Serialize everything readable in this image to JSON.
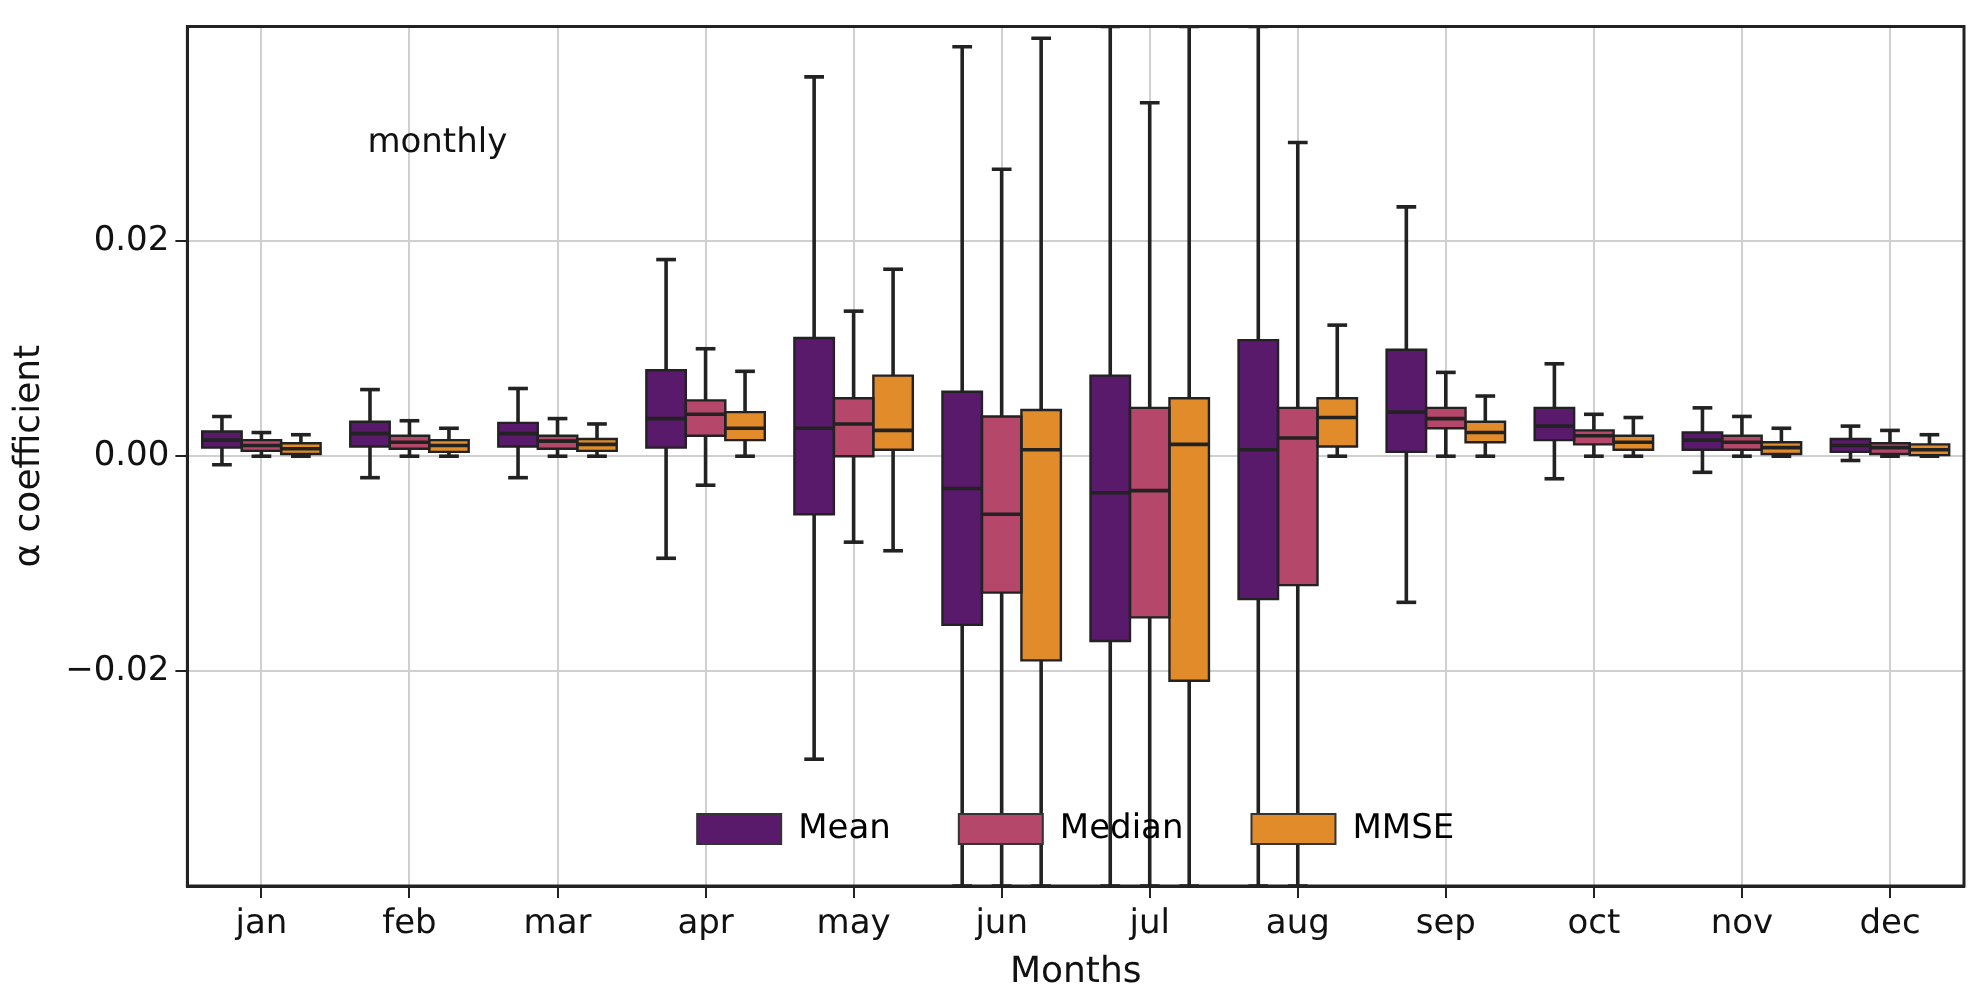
{
  "chart_data": {
    "type": "box",
    "xlabel": "Months",
    "ylabel": "α coefficient",
    "annotations": [
      "monthly"
    ],
    "categories": [
      "jan",
      "feb",
      "mar",
      "apr",
      "may",
      "jun",
      "jul",
      "aug",
      "sep",
      "oct",
      "nov",
      "dec"
    ],
    "ylim": [
      -0.04,
      0.04
    ],
    "yticks": [
      {
        "value": -0.02,
        "label": "−0.02"
      },
      {
        "value": 0,
        "label": "0.00"
      },
      {
        "value": 0.02,
        "label": "0.02"
      }
    ],
    "grid": true,
    "legend": "bottom",
    "series": [
      {
        "name": "Mean",
        "color": "#5a1a6b",
        "boxes": [
          {
            "low": -0.0008,
            "q1": 0.0008,
            "median": 0.0015,
            "q3": 0.0023,
            "high": 0.0037
          },
          {
            "low": -0.002,
            "q1": 0.0009,
            "median": 0.0021,
            "q3": 0.0032,
            "high": 0.0062
          },
          {
            "low": -0.002,
            "q1": 0.0009,
            "median": 0.0021,
            "q3": 0.0031,
            "high": 0.0063
          },
          {
            "low": -0.0095,
            "q1": 0.0008,
            "median": 0.0035,
            "q3": 0.008,
            "high": 0.0183
          },
          {
            "low": -0.0282,
            "q1": -0.0054,
            "median": 0.0026,
            "q3": 0.011,
            "high": 0.0353
          },
          {
            "low": -0.04,
            "q1": -0.0157,
            "median": -0.003,
            "q3": 0.006,
            "high": 0.0381
          },
          {
            "low": -0.04,
            "q1": -0.0172,
            "median": -0.0034,
            "q3": 0.0075,
            "high": 0.04
          },
          {
            "low": -0.04,
            "q1": -0.0133,
            "median": 0.0006,
            "q3": 0.0108,
            "high": 0.04
          },
          {
            "low": -0.0136,
            "q1": 0.0004,
            "median": 0.0041,
            "q3": 0.0099,
            "high": 0.0232
          },
          {
            "low": -0.0021,
            "q1": 0.0015,
            "median": 0.0028,
            "q3": 0.0045,
            "high": 0.0086
          },
          {
            "low": -0.0015,
            "q1": 0.0006,
            "median": 0.0015,
            "q3": 0.0022,
            "high": 0.0045
          },
          {
            "low": -0.0004,
            "q1": 0.0004,
            "median": 0.001,
            "q3": 0.0016,
            "high": 0.0028
          }
        ]
      },
      {
        "name": "Median",
        "color": "#b5476a",
        "boxes": [
          {
            "low": 0,
            "q1": 0.0005,
            "median": 0.001,
            "q3": 0.0015,
            "high": 0.0022
          },
          {
            "low": 0,
            "q1": 0.0007,
            "median": 0.0013,
            "q3": 0.0019,
            "high": 0.0033
          },
          {
            "low": 0,
            "q1": 0.0007,
            "median": 0.0014,
            "q3": 0.0019,
            "high": 0.0035
          },
          {
            "low": -0.0027,
            "q1": 0.0019,
            "median": 0.0039,
            "q3": 0.0052,
            "high": 0.01
          },
          {
            "low": -0.008,
            "q1": 0,
            "median": 0.003,
            "q3": 0.0054,
            "high": 0.0135
          },
          {
            "low": -0.04,
            "q1": -0.0127,
            "median": -0.0054,
            "q3": 0.0037,
            "high": 0.0267
          },
          {
            "low": -0.04,
            "q1": -0.015,
            "median": -0.0032,
            "q3": 0.0045,
            "high": 0.0329
          },
          {
            "low": -0.04,
            "q1": -0.012,
            "median": 0.0017,
            "q3": 0.0045,
            "high": 0.0292
          },
          {
            "low": 0,
            "q1": 0.0026,
            "median": 0.0035,
            "q3": 0.0045,
            "high": 0.0078
          },
          {
            "low": 0,
            "q1": 0.0011,
            "median": 0.0019,
            "q3": 0.0024,
            "high": 0.0039
          },
          {
            "low": 0,
            "q1": 0.0006,
            "median": 0.0013,
            "q3": 0.0019,
            "high": 0.0037
          },
          {
            "low": 0,
            "q1": 0.0002,
            "median": 0.0008,
            "q3": 0.0012,
            "high": 0.0024
          }
        ]
      },
      {
        "name": "MMSE",
        "color": "#e28b2a",
        "boxes": [
          {
            "low": 0,
            "q1": 0.0002,
            "median": 0.0007,
            "q3": 0.0012,
            "high": 0.002
          },
          {
            "low": 0,
            "q1": 0.0004,
            "median": 0.001,
            "q3": 0.0015,
            "high": 0.0026
          },
          {
            "low": 0,
            "q1": 0.0005,
            "median": 0.0011,
            "q3": 0.0016,
            "high": 0.003
          },
          {
            "low": 0,
            "q1": 0.0015,
            "median": 0.0026,
            "q3": 0.0041,
            "high": 0.0079
          },
          {
            "low": -0.0088,
            "q1": 0.0006,
            "median": 0.0024,
            "q3": 0.0075,
            "high": 0.0174
          },
          {
            "low": -0.04,
            "q1": -0.019,
            "median": 0.0006,
            "q3": 0.0043,
            "high": 0.0389
          },
          {
            "low": -0.04,
            "q1": -0.0209,
            "median": 0.0011,
            "q3": 0.0054,
            "high": 0.04
          },
          {
            "low": 0,
            "q1": 0.0009,
            "median": 0.0036,
            "q3": 0.0054,
            "high": 0.0122
          },
          {
            "low": 0,
            "q1": 0.0013,
            "median": 0.0022,
            "q3": 0.0032,
            "high": 0.0056
          },
          {
            "low": 0,
            "q1": 0.0006,
            "median": 0.0013,
            "q3": 0.0019,
            "high": 0.0036
          },
          {
            "low": 0,
            "q1": 0.0002,
            "median": 0.0008,
            "q3": 0.0013,
            "high": 0.0026
          },
          {
            "low": 0,
            "q1": 0.0001,
            "median": 0.0006,
            "q3": 0.0011,
            "high": 0.002
          }
        ]
      }
    ]
  }
}
